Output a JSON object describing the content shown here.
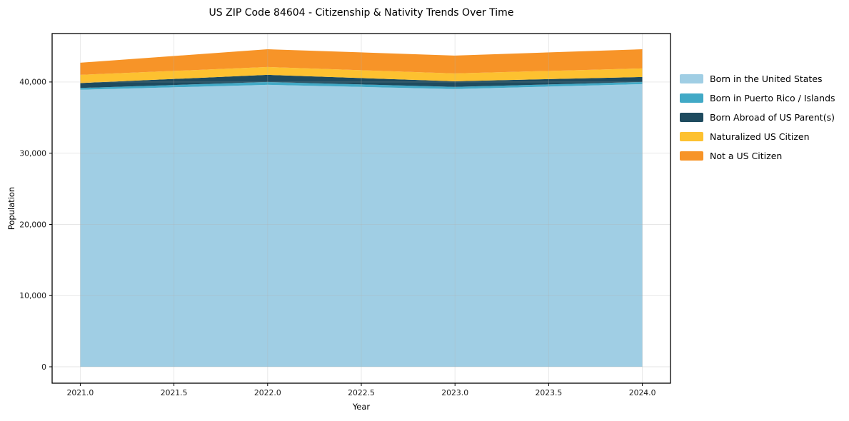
{
  "chart_data": {
    "type": "area",
    "stacked": true,
    "title": "US ZIP Code 84604 - Citizenship & Nativity Trends Over Time",
    "xlabel": "Year",
    "ylabel": "Population",
    "x": [
      2021,
      2022,
      2023,
      2024
    ],
    "series": [
      {
        "name": "Born in the United States",
        "color": "#A0CEE4",
        "values": [
          38900,
          39600,
          39000,
          39700
        ]
      },
      {
        "name": "Born in Puerto Rico / Islands",
        "color": "#41A9C6",
        "values": [
          250,
          400,
          300,
          300
        ]
      },
      {
        "name": "Born Abroad of US Parent(s)",
        "color": "#1E4B5F",
        "values": [
          700,
          1000,
          800,
          700
        ]
      },
      {
        "name": "Naturalized US Citizen",
        "color": "#FDC130",
        "values": [
          1150,
          1100,
          1100,
          1200
        ]
      },
      {
        "name": "Not a US Citizen",
        "color": "#F79428",
        "values": [
          1700,
          2500,
          2500,
          2700
        ]
      }
    ],
    "totals": [
      42700,
      44600,
      43700,
      44600
    ],
    "xticks": {
      "values": [
        2021.0,
        2021.5,
        2022.0,
        2022.5,
        2023.0,
        2023.5,
        2024.0
      ],
      "labels": [
        "2021.0",
        "2021.5",
        "2022.0",
        "2022.5",
        "2023.0",
        "2023.5",
        "2024.0"
      ]
    },
    "yticks": {
      "values": [
        0,
        10000,
        20000,
        30000,
        40000
      ],
      "labels": [
        "0",
        "10,000",
        "20,000",
        "30,000",
        "40,000"
      ]
    },
    "xlim": [
      2020.85,
      2024.15
    ],
    "ylim": [
      -2300,
      46800
    ],
    "grid": true,
    "grid_on_top": true,
    "legend_position": "right-outside"
  },
  "colors": {
    "background": "#FFFFFF",
    "axis": "#000000",
    "tick_text": "#1A1A1A",
    "grid": "#B0B0B0"
  }
}
